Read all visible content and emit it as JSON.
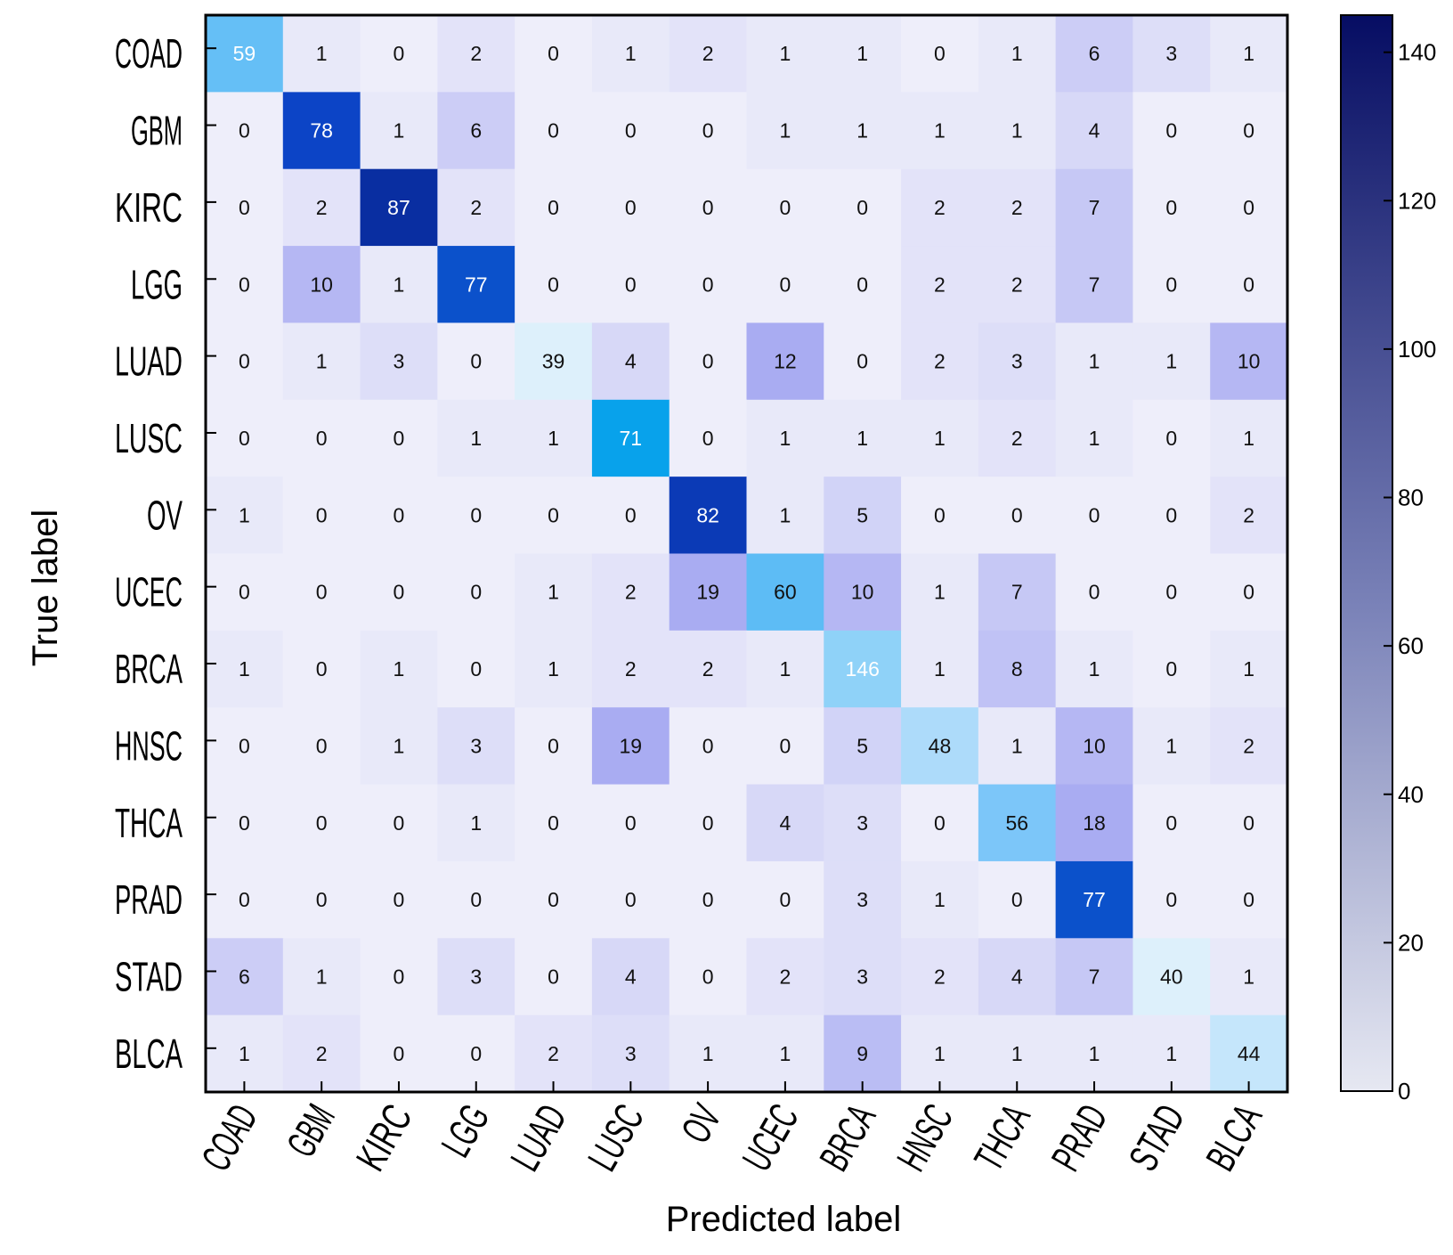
{
  "chart_data": {
    "type": "heatmap",
    "title": "",
    "xlabel": "Predicted label",
    "ylabel": "True label",
    "rows": [
      "COAD",
      "GBM",
      "KIRC",
      "LGG",
      "LUAD",
      "LUSC",
      "OV",
      "UCEC",
      "BRCA",
      "HNSC",
      "THCA",
      "PRAD",
      "STAD",
      "BLCA"
    ],
    "columns": [
      "COAD",
      "GBM",
      "KIRC",
      "LGG",
      "LUAD",
      "LUSC",
      "OV",
      "UCEC",
      "BRCA",
      "HNSC",
      "THCA",
      "PRAD",
      "STAD",
      "BLCA"
    ],
    "values": [
      [
        59,
        1,
        0,
        2,
        0,
        1,
        2,
        1,
        1,
        0,
        1,
        6,
        3,
        1
      ],
      [
        0,
        78,
        1,
        6,
        0,
        0,
        0,
        1,
        1,
        1,
        1,
        4,
        0,
        0
      ],
      [
        0,
        2,
        87,
        2,
        0,
        0,
        0,
        0,
        0,
        2,
        2,
        7,
        0,
        0
      ],
      [
        0,
        10,
        1,
        77,
        0,
        0,
        0,
        0,
        0,
        2,
        2,
        7,
        0,
        0
      ],
      [
        0,
        1,
        3,
        0,
        39,
        4,
        0,
        12,
        0,
        2,
        3,
        1,
        1,
        10
      ],
      [
        0,
        0,
        0,
        1,
        1,
        71,
        0,
        1,
        1,
        1,
        2,
        1,
        0,
        1
      ],
      [
        1,
        0,
        0,
        0,
        0,
        0,
        82,
        1,
        5,
        0,
        0,
        0,
        0,
        2
      ],
      [
        0,
        0,
        0,
        0,
        1,
        2,
        19,
        60,
        10,
        1,
        7,
        0,
        0,
        0
      ],
      [
        1,
        0,
        1,
        0,
        1,
        2,
        2,
        1,
        146,
        1,
        8,
        1,
        0,
        1
      ],
      [
        0,
        0,
        1,
        3,
        0,
        19,
        0,
        0,
        5,
        48,
        1,
        10,
        1,
        2
      ],
      [
        0,
        0,
        0,
        1,
        0,
        0,
        0,
        4,
        3,
        0,
        56,
        18,
        0,
        0
      ],
      [
        0,
        0,
        0,
        0,
        0,
        0,
        0,
        0,
        3,
        1,
        0,
        77,
        0,
        0
      ],
      [
        6,
        1,
        0,
        3,
        0,
        4,
        0,
        2,
        3,
        2,
        4,
        7,
        40,
        1
      ],
      [
        1,
        2,
        0,
        0,
        2,
        3,
        1,
        1,
        9,
        1,
        1,
        1,
        1,
        44
      ]
    ],
    "colorbar": {
      "range": [
        0,
        145
      ],
      "ticks": [
        0,
        20,
        40,
        60,
        80,
        100,
        120,
        140
      ]
    },
    "colors": {
      "offdiag_light": "#EEEEFA",
      "offdiag_dark": "#A9ACF2",
      "diag_high": "#050F6C",
      "diag_upper": "#0C44C6",
      "diag_mid": "#08A2EB",
      "diag_lower": "#7CC6F9",
      "diag_low": "#DDF0FB",
      "cbar_bottom": "#E6E8F2",
      "cbar_mid": "#7A82B8",
      "cbar_top": "#060D63"
    }
  }
}
